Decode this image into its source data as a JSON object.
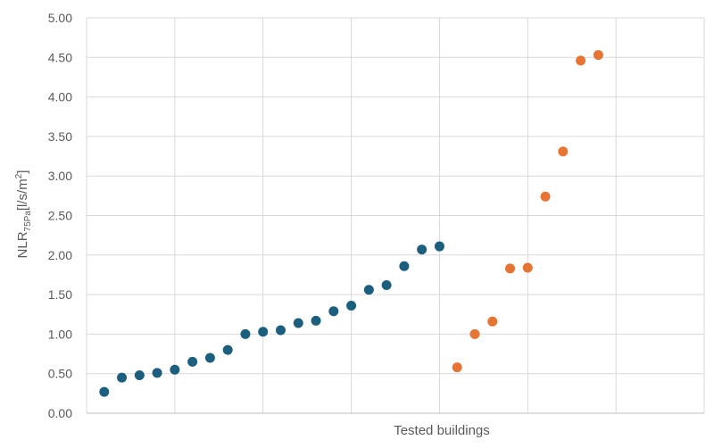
{
  "chart_data": {
    "type": "scatter",
    "xlabel": "Tested buildings",
    "ylabel": {
      "main": "NLR",
      "subscript": "75Pa",
      "unit_prefix": "[l/s/m",
      "unit_sup": "2",
      "unit_suffix": "]"
    },
    "xlim": [
      0,
      35
    ],
    "ylim": [
      0,
      5
    ],
    "y_ticks": [
      "0.00",
      "0.50",
      "1.00",
      "1.50",
      "2.00",
      "2.50",
      "3.00",
      "3.50",
      "4.00",
      "4.50",
      "5.00"
    ],
    "x_grid": [
      5,
      10,
      15,
      20,
      25,
      30,
      35
    ],
    "grid": "vertical and horizontal",
    "legend": "none",
    "series": [
      {
        "color": "#1b5e7e",
        "x": [
          1,
          2,
          3,
          4,
          5,
          6,
          7,
          8,
          9,
          10,
          11,
          12,
          13,
          14,
          15,
          16,
          17,
          18,
          19,
          20
        ],
        "y": [
          0.27,
          0.45,
          0.48,
          0.51,
          0.55,
          0.65,
          0.7,
          0.8,
          1.0,
          1.03,
          1.05,
          1.14,
          1.17,
          1.29,
          1.36,
          1.56,
          1.62,
          1.86,
          2.07,
          2.11
        ]
      },
      {
        "color": "#e67433",
        "x": [
          21,
          22,
          23,
          24,
          25,
          26,
          27,
          28,
          29
        ],
        "y": [
          0.58,
          1.0,
          1.16,
          1.83,
          1.84,
          2.74,
          3.31,
          4.46,
          4.53
        ]
      }
    ]
  }
}
